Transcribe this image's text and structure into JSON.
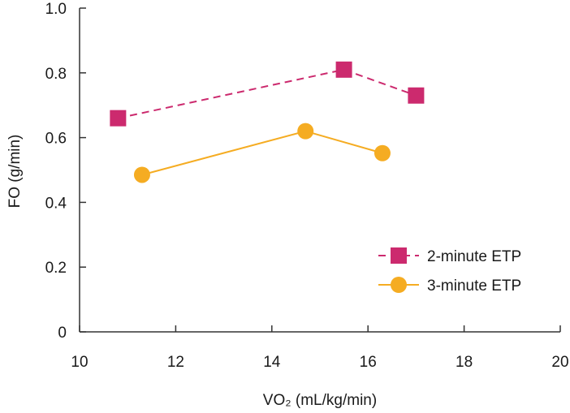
{
  "chart_data": {
    "type": "line",
    "title": "",
    "xlabel": "VO₂ (mL/kg/min)",
    "ylabel": "FO (g/min)",
    "xlim": [
      10,
      20
    ],
    "ylim": [
      0,
      1.0
    ],
    "xticks": [
      10,
      12,
      14,
      16,
      18,
      20
    ],
    "xtick_labels": [
      "10",
      "12",
      "14",
      "16",
      "18",
      "20"
    ],
    "yticks": [
      0,
      0.2,
      0.4,
      0.6,
      0.8,
      1.0
    ],
    "ytick_labels": [
      "0",
      "0.2",
      "0.4",
      "0.6",
      "0.8",
      "1.0"
    ],
    "grid": false,
    "legend_position": "bottom-right",
    "series": [
      {
        "name": "2-minute ETP",
        "marker": "square",
        "line_style": "dashed",
        "color": "#cc2a6e",
        "x": [
          10.8,
          15.5,
          17.0
        ],
        "y": [
          0.66,
          0.81,
          0.73
        ]
      },
      {
        "name": "3-minute ETP",
        "marker": "circle",
        "line_style": "solid",
        "color": "#f5ac22",
        "x": [
          11.3,
          14.7,
          16.3
        ],
        "y": [
          0.485,
          0.62,
          0.552
        ]
      }
    ]
  }
}
